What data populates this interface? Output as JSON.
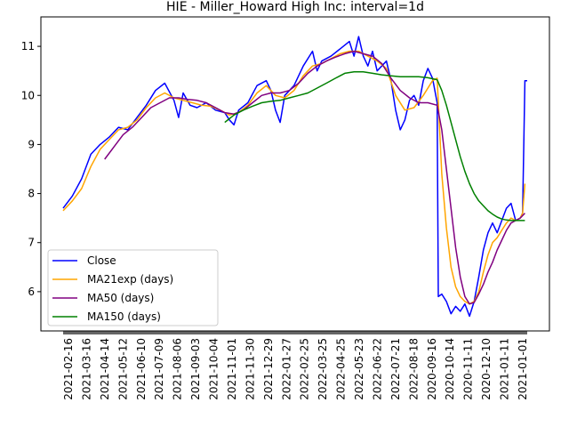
{
  "chart_data": {
    "type": "line",
    "title": "HIE - Miller_Howard High Inc: interval=1d",
    "xlabel": "",
    "ylabel": "",
    "ylim": [
      5.2,
      11.6
    ],
    "yticks": [
      6,
      7,
      8,
      9,
      10,
      11
    ],
    "x_tick_labels": [
      "2021-02-16",
      "2021-03-16",
      "2021-04-14",
      "2021-05-12",
      "2021-06-10",
      "2021-07-09",
      "2021-08-06",
      "2021-09-03",
      "2021-10-04",
      "2021-11-01",
      "2021-11-30",
      "2021-12-29",
      "2022-01-27",
      "2022-02-25",
      "2022-03-25",
      "2022-04-25",
      "2022-05-23",
      "2022-06-22",
      "2022-07-21",
      "2022-08-18",
      "2020-09-16",
      "2020-10-14",
      "2020-11-11",
      "2020-12-10",
      "2021-01-11",
      "2021-01-01"
    ],
    "legend_position": "lower-left",
    "grid": false,
    "colors": {
      "Close": "#0000ff",
      "MA21exp (days)": "#ffa500",
      "MA50 (days)": "#800080",
      "MA150 (days)": "#008000"
    },
    "series": [
      {
        "name": "Close",
        "points": [
          [
            0,
            7.7
          ],
          [
            4,
            7.95
          ],
          [
            8,
            8.3
          ],
          [
            12,
            8.8
          ],
          [
            16,
            9.0
          ],
          [
            20,
            9.15
          ],
          [
            24,
            9.35
          ],
          [
            28,
            9.3
          ],
          [
            32,
            9.55
          ],
          [
            36,
            9.8
          ],
          [
            40,
            10.1
          ],
          [
            44,
            10.25
          ],
          [
            48,
            9.9
          ],
          [
            50,
            9.55
          ],
          [
            52,
            10.05
          ],
          [
            55,
            9.8
          ],
          [
            58,
            9.75
          ],
          [
            62,
            9.85
          ],
          [
            66,
            9.7
          ],
          [
            70,
            9.65
          ],
          [
            72,
            9.5
          ],
          [
            74,
            9.4
          ],
          [
            76,
            9.7
          ],
          [
            80,
            9.85
          ],
          [
            84,
            10.2
          ],
          [
            88,
            10.3
          ],
          [
            90,
            10.1
          ],
          [
            92,
            9.7
          ],
          [
            94,
            9.45
          ],
          [
            96,
            10.0
          ],
          [
            100,
            10.2
          ],
          [
            104,
            10.6
          ],
          [
            108,
            10.9
          ],
          [
            110,
            10.5
          ],
          [
            112,
            10.7
          ],
          [
            116,
            10.8
          ],
          [
            120,
            10.95
          ],
          [
            124,
            11.1
          ],
          [
            126,
            10.8
          ],
          [
            128,
            11.2
          ],
          [
            130,
            10.8
          ],
          [
            132,
            10.6
          ],
          [
            134,
            10.9
          ],
          [
            136,
            10.5
          ],
          [
            138,
            10.6
          ],
          [
            140,
            10.7
          ],
          [
            142,
            10.3
          ],
          [
            144,
            9.7
          ],
          [
            146,
            9.3
          ],
          [
            148,
            9.5
          ],
          [
            150,
            9.9
          ],
          [
            152,
            10.0
          ],
          [
            154,
            9.8
          ],
          [
            156,
            10.3
          ],
          [
            158,
            10.55
          ],
          [
            160,
            10.35
          ],
          [
            162,
            9.85
          ],
          [
            162.5,
            5.9
          ],
          [
            164,
            5.95
          ],
          [
            166,
            5.8
          ],
          [
            168,
            5.55
          ],
          [
            170,
            5.7
          ],
          [
            172,
            5.6
          ],
          [
            174,
            5.75
          ],
          [
            176,
            5.5
          ],
          [
            178,
            5.8
          ],
          [
            180,
            6.3
          ],
          [
            182,
            6.85
          ],
          [
            184,
            7.2
          ],
          [
            186,
            7.4
          ],
          [
            188,
            7.2
          ],
          [
            190,
            7.45
          ],
          [
            192,
            7.7
          ],
          [
            194,
            7.8
          ],
          [
            196,
            7.45
          ],
          [
            198,
            7.5
          ],
          [
            199,
            7.6
          ],
          [
            200,
            10.3
          ],
          [
            201,
            10.3
          ]
        ]
      },
      {
        "name": "MA21exp (days)",
        "points": [
          [
            0,
            7.65
          ],
          [
            4,
            7.85
          ],
          [
            8,
            8.1
          ],
          [
            12,
            8.55
          ],
          [
            16,
            8.9
          ],
          [
            20,
            9.1
          ],
          [
            24,
            9.3
          ],
          [
            28,
            9.35
          ],
          [
            32,
            9.5
          ],
          [
            36,
            9.75
          ],
          [
            40,
            9.95
          ],
          [
            44,
            10.05
          ],
          [
            48,
            9.95
          ],
          [
            52,
            9.9
          ],
          [
            56,
            9.85
          ],
          [
            60,
            9.8
          ],
          [
            64,
            9.78
          ],
          [
            68,
            9.7
          ],
          [
            72,
            9.6
          ],
          [
            76,
            9.65
          ],
          [
            80,
            9.8
          ],
          [
            84,
            10.05
          ],
          [
            88,
            10.2
          ],
          [
            92,
            10.0
          ],
          [
            96,
            9.95
          ],
          [
            100,
            10.1
          ],
          [
            104,
            10.4
          ],
          [
            108,
            10.6
          ],
          [
            112,
            10.65
          ],
          [
            116,
            10.75
          ],
          [
            120,
            10.85
          ],
          [
            124,
            10.9
          ],
          [
            128,
            10.9
          ],
          [
            132,
            10.8
          ],
          [
            136,
            10.7
          ],
          [
            140,
            10.55
          ],
          [
            144,
            10.0
          ],
          [
            148,
            9.7
          ],
          [
            152,
            9.75
          ],
          [
            156,
            10.0
          ],
          [
            160,
            10.3
          ],
          [
            162,
            10.35
          ],
          [
            164,
            8.4
          ],
          [
            166,
            7.3
          ],
          [
            168,
            6.5
          ],
          [
            170,
            6.1
          ],
          [
            172,
            5.9
          ],
          [
            174,
            5.8
          ],
          [
            176,
            5.75
          ],
          [
            178,
            5.8
          ],
          [
            180,
            6.0
          ],
          [
            182,
            6.4
          ],
          [
            184,
            6.75
          ],
          [
            186,
            7.0
          ],
          [
            188,
            7.1
          ],
          [
            190,
            7.25
          ],
          [
            192,
            7.4
          ],
          [
            194,
            7.5
          ],
          [
            196,
            7.45
          ],
          [
            198,
            7.5
          ],
          [
            199,
            7.6
          ],
          [
            200,
            8.2
          ]
        ]
      },
      {
        "name": "MA50 (days)",
        "points": [
          [
            18,
            8.7
          ],
          [
            22,
            8.95
          ],
          [
            26,
            9.2
          ],
          [
            30,
            9.35
          ],
          [
            34,
            9.55
          ],
          [
            38,
            9.75
          ],
          [
            42,
            9.85
          ],
          [
            46,
            9.95
          ],
          [
            50,
            9.95
          ],
          [
            54,
            9.92
          ],
          [
            58,
            9.9
          ],
          [
            62,
            9.85
          ],
          [
            66,
            9.75
          ],
          [
            70,
            9.65
          ],
          [
            74,
            9.62
          ],
          [
            78,
            9.7
          ],
          [
            82,
            9.85
          ],
          [
            86,
            10.0
          ],
          [
            90,
            10.05
          ],
          [
            94,
            10.05
          ],
          [
            98,
            10.1
          ],
          [
            102,
            10.25
          ],
          [
            106,
            10.45
          ],
          [
            110,
            10.6
          ],
          [
            114,
            10.7
          ],
          [
            118,
            10.78
          ],
          [
            122,
            10.85
          ],
          [
            126,
            10.9
          ],
          [
            130,
            10.85
          ],
          [
            134,
            10.8
          ],
          [
            138,
            10.65
          ],
          [
            142,
            10.35
          ],
          [
            146,
            10.1
          ],
          [
            150,
            9.95
          ],
          [
            154,
            9.85
          ],
          [
            158,
            9.85
          ],
          [
            162,
            9.8
          ],
          [
            164,
            9.3
          ],
          [
            166,
            8.5
          ],
          [
            168,
            7.7
          ],
          [
            170,
            6.9
          ],
          [
            172,
            6.3
          ],
          [
            174,
            5.9
          ],
          [
            176,
            5.75
          ],
          [
            178,
            5.78
          ],
          [
            180,
            5.95
          ],
          [
            182,
            6.15
          ],
          [
            184,
            6.4
          ],
          [
            186,
            6.6
          ],
          [
            188,
            6.85
          ],
          [
            190,
            7.05
          ],
          [
            192,
            7.25
          ],
          [
            194,
            7.4
          ],
          [
            196,
            7.45
          ],
          [
            198,
            7.5
          ],
          [
            200,
            7.6
          ]
        ]
      },
      {
        "name": "MA150 (days)",
        "points": [
          [
            70,
            9.45
          ],
          [
            74,
            9.6
          ],
          [
            78,
            9.7
          ],
          [
            82,
            9.78
          ],
          [
            86,
            9.85
          ],
          [
            90,
            9.88
          ],
          [
            94,
            9.9
          ],
          [
            98,
            9.95
          ],
          [
            102,
            10.0
          ],
          [
            106,
            10.05
          ],
          [
            110,
            10.15
          ],
          [
            114,
            10.25
          ],
          [
            118,
            10.35
          ],
          [
            122,
            10.45
          ],
          [
            126,
            10.48
          ],
          [
            130,
            10.48
          ],
          [
            134,
            10.45
          ],
          [
            138,
            10.42
          ],
          [
            142,
            10.4
          ],
          [
            146,
            10.38
          ],
          [
            150,
            10.38
          ],
          [
            154,
            10.38
          ],
          [
            158,
            10.36
          ],
          [
            162,
            10.32
          ],
          [
            164,
            10.1
          ],
          [
            166,
            9.8
          ],
          [
            168,
            9.45
          ],
          [
            170,
            9.1
          ],
          [
            172,
            8.75
          ],
          [
            174,
            8.45
          ],
          [
            176,
            8.2
          ],
          [
            178,
            8.0
          ],
          [
            180,
            7.85
          ],
          [
            182,
            7.75
          ],
          [
            184,
            7.65
          ],
          [
            186,
            7.58
          ],
          [
            188,
            7.52
          ],
          [
            190,
            7.48
          ],
          [
            192,
            7.46
          ],
          [
            194,
            7.45
          ],
          [
            196,
            7.45
          ],
          [
            198,
            7.45
          ],
          [
            200,
            7.45
          ]
        ]
      }
    ]
  }
}
